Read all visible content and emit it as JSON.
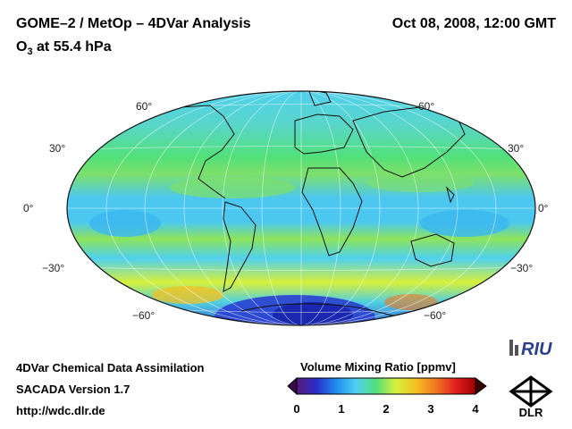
{
  "header": {
    "title": "GOME–2 / MetOp – 4DVar Analysis",
    "subtitle_prefix": "O",
    "subtitle_sub": "3",
    "subtitle_rest": " at 55.4 hPa",
    "datetime": "Oct 08, 2008, 12:00 GMT"
  },
  "map": {
    "projection": "Hammer/Aitoff equal-area",
    "lat_labels_left": [
      "60°",
      "30°",
      "0°",
      "−30°",
      "−60°"
    ],
    "lat_labels_right": [
      "60°",
      "30°",
      "0°",
      "−30°",
      "−60°"
    ]
  },
  "footer": {
    "line1": "4DVar Chemical Data Assimilation",
    "line2": "SACADA Version 1.7",
    "line3": "http://wdc.dlr.de"
  },
  "colorbar": {
    "title": "Volume Mixing Ratio [ppmv]",
    "ticks": [
      "0",
      "1",
      "2",
      "3",
      "4"
    ],
    "colors": [
      "#5a1a78",
      "#2a2fc8",
      "#1f8cf0",
      "#4fd0f0",
      "#52e07a",
      "#d8f03a",
      "#f4c020",
      "#f07820",
      "#e02020",
      "#a00000"
    ]
  },
  "logos": {
    "riu": "RIU",
    "dlr": "DLR"
  }
}
